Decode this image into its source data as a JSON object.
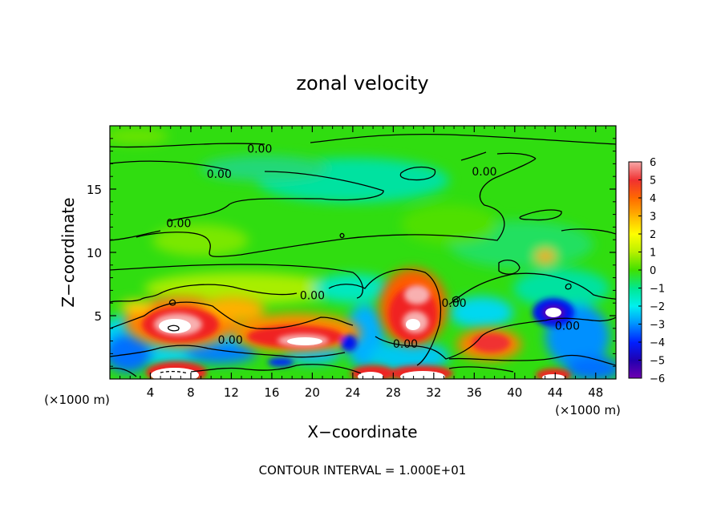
{
  "chart_data": {
    "type": "heatmap",
    "title": "zonal velocity",
    "xlabel": "X−coordinate",
    "ylabel": "Z−coordinate",
    "x_unit_left": "(×1000 m)",
    "x_unit_right": "(×1000 m)",
    "footer": "CONTOUR INTERVAL = 1.000E+01",
    "xlim": [
      0,
      50
    ],
    "ylim": [
      0,
      20
    ],
    "x_ticks": [
      "4",
      "8",
      "12",
      "16",
      "20",
      "24",
      "28",
      "32",
      "36",
      "40",
      "44",
      "48"
    ],
    "x_tick_values": [
      4,
      8,
      12,
      16,
      20,
      24,
      28,
      32,
      36,
      40,
      44,
      48
    ],
    "y_ticks": [
      "5",
      "10",
      "15"
    ],
    "y_tick_values": [
      5,
      10,
      15
    ],
    "colorbar": {
      "labels": [
        "6",
        "5",
        "4",
        "3",
        "2",
        "1",
        "0",
        "−1",
        "−2",
        "−3",
        "−4",
        "−5",
        "−6"
      ],
      "values": [
        6,
        5,
        4,
        3,
        2,
        1,
        0,
        -1,
        -2,
        -3,
        -4,
        -5,
        -6
      ],
      "colors": [
        "#f7a8a8",
        "#f03030",
        "#ff6a00",
        "#ffb400",
        "#ffff00",
        "#b8f000",
        "#40e000",
        "#00e890",
        "#00f0f0",
        "#0090ff",
        "#0020ff",
        "#2000b0",
        "#7000b0"
      ]
    },
    "contour_labels": [
      {
        "text": "0.00",
        "x": 14.8,
        "y": 18.2
      },
      {
        "text": "0.00",
        "x": 10.8,
        "y": 16.2
      },
      {
        "text": "0.00",
        "x": 6.8,
        "y": 12.3
      },
      {
        "text": "0.00",
        "x": 37.0,
        "y": 16.4
      },
      {
        "text": "0.00",
        "x": 20.0,
        "y": 6.6
      },
      {
        "text": "0.00",
        "x": 11.9,
        "y": 3.1
      },
      {
        "text": "0.00",
        "x": 29.2,
        "y": 2.8
      },
      {
        "text": "0.00",
        "x": 34.0,
        "y": 6.0
      },
      {
        "text": "0.00",
        "x": 45.2,
        "y": 4.2
      }
    ]
  }
}
